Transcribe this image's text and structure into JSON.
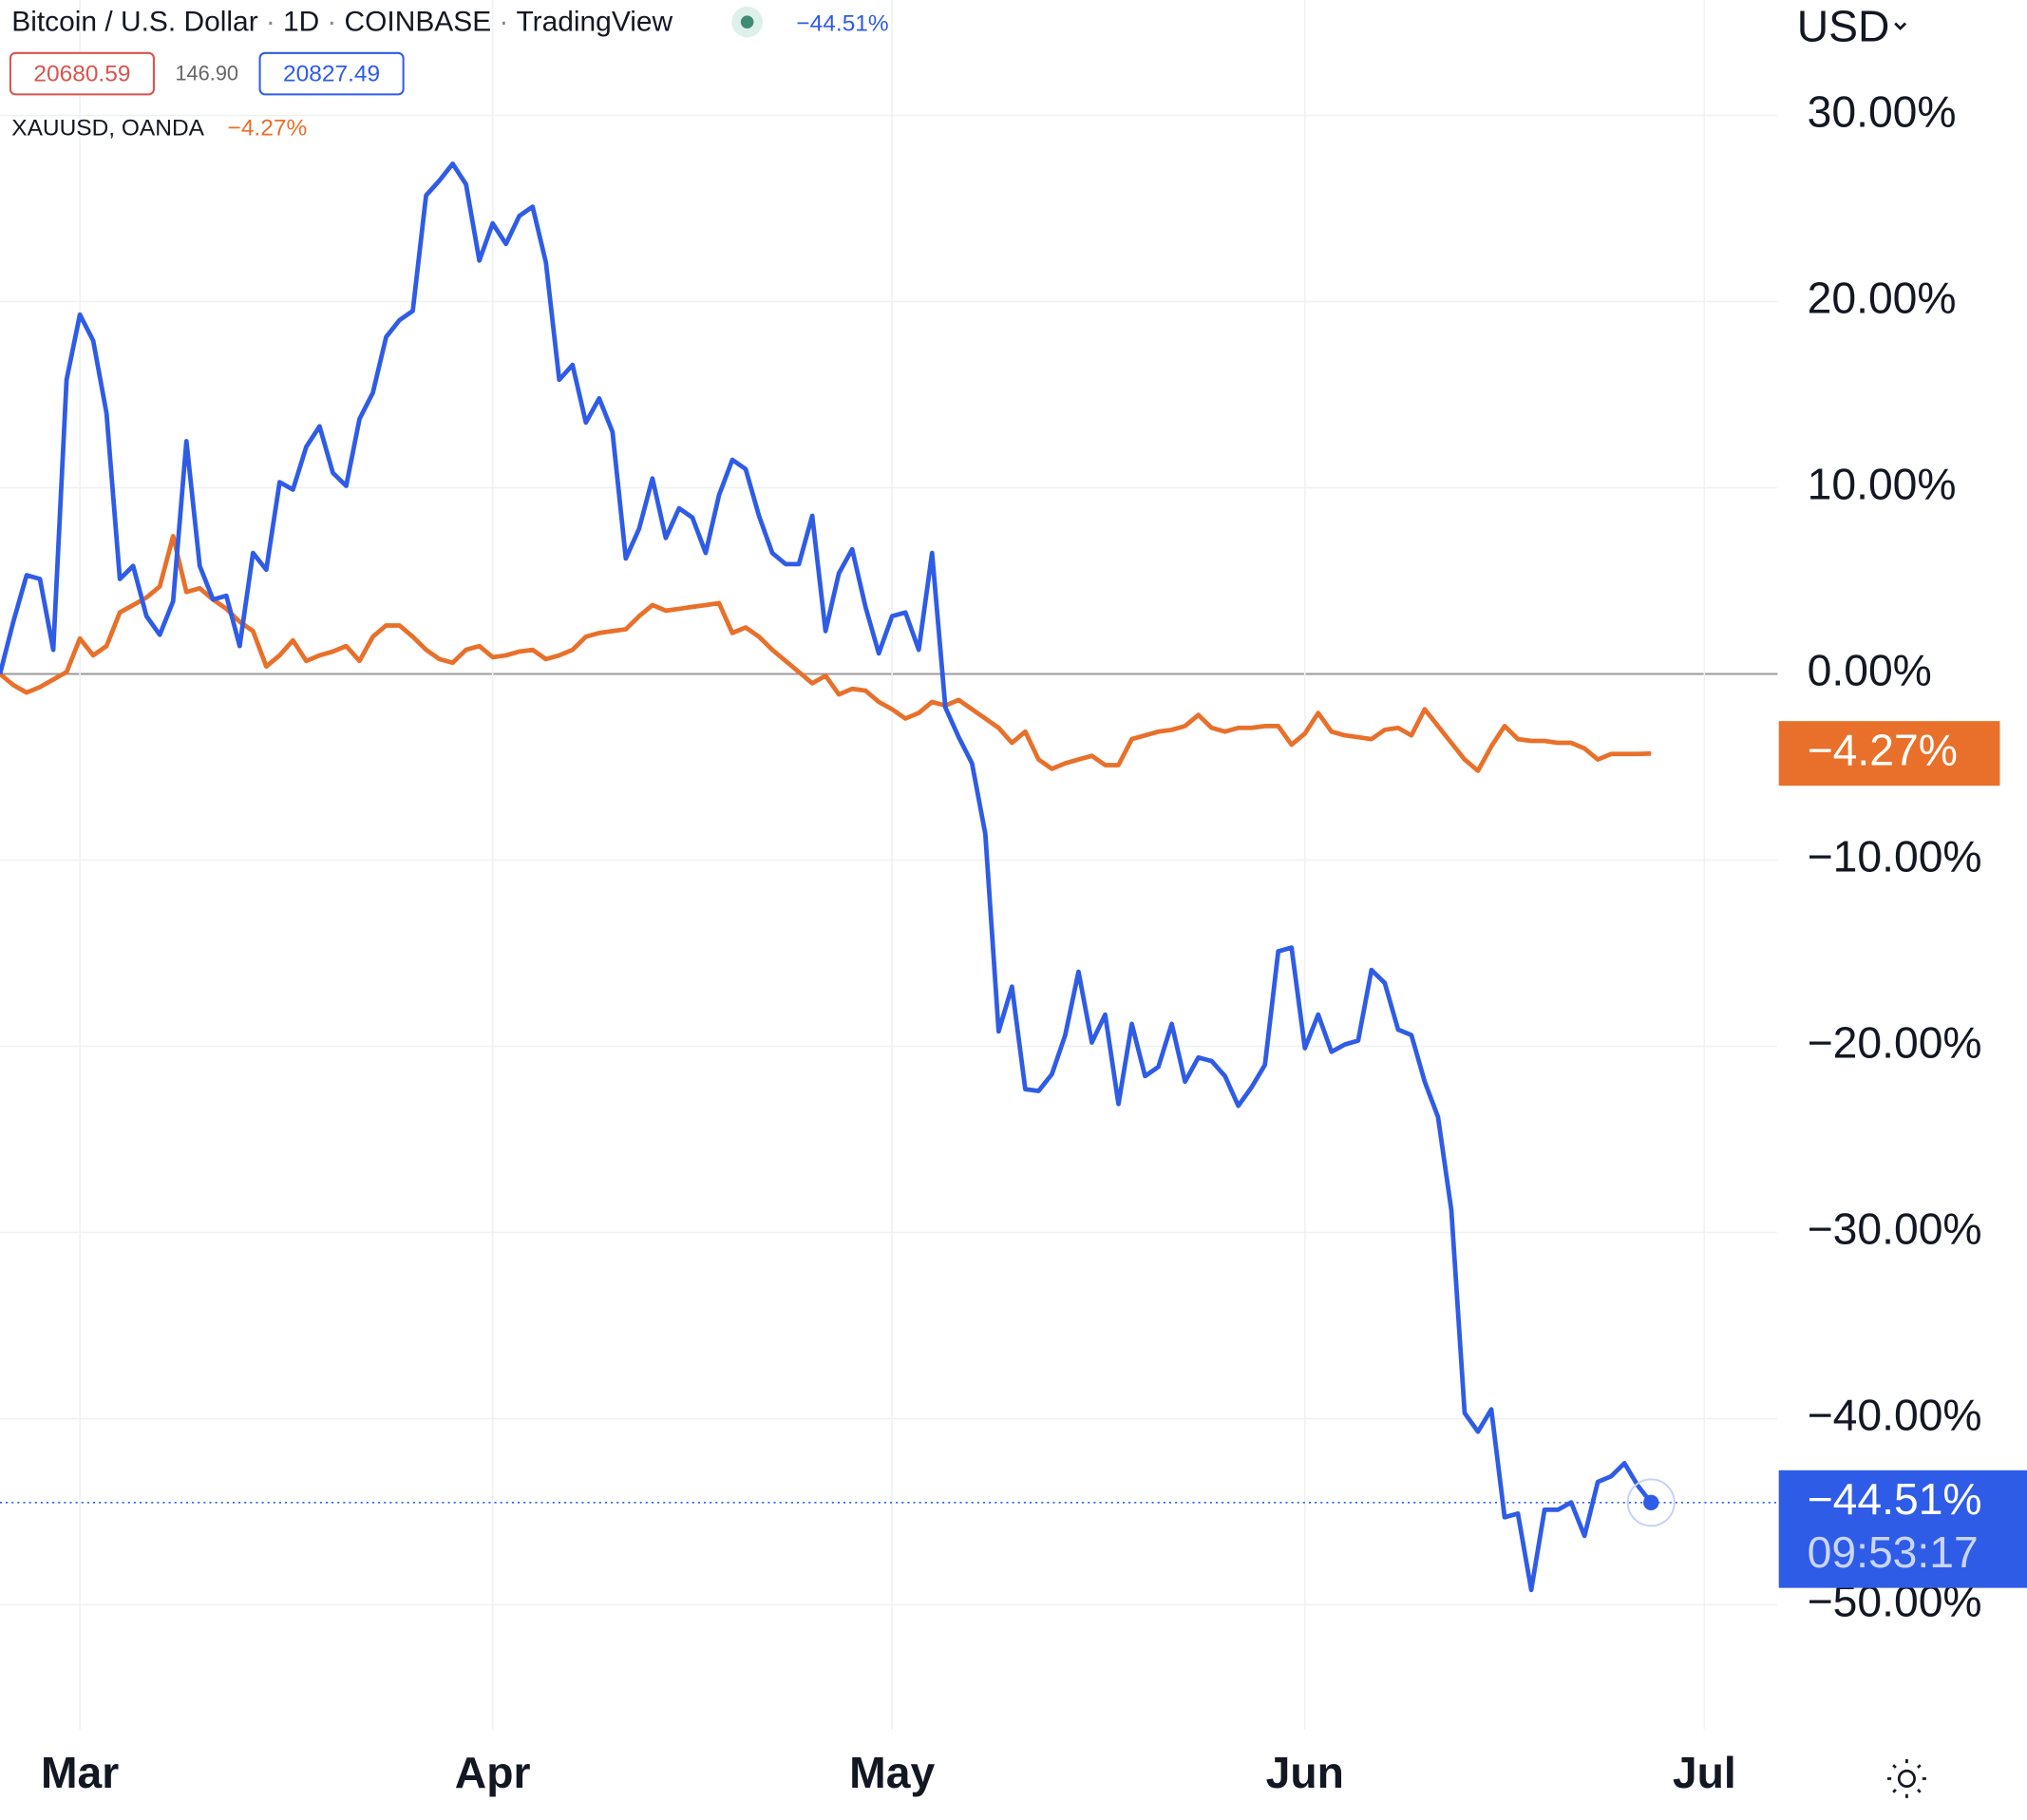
{
  "chart_data": {
    "type": "line",
    "title": "Bitcoin / U.S. Dollar",
    "interval": "1D",
    "exchange": "COINBASE",
    "source": "TradingView",
    "separator": "·",
    "quote": {
      "bid": 20680.59,
      "spread": {
        "value": 146.9,
        "label": "146.90"
      },
      "ask": 20827.49
    },
    "currency": "USD",
    "countdown": "09:53:17",
    "categories": [
      null,
      null,
      null,
      null,
      null,
      null,
      "Mar",
      null,
      null,
      null,
      null,
      null,
      null,
      null,
      null,
      null,
      null,
      null,
      null,
      null,
      null,
      null,
      null,
      null,
      null,
      null,
      null,
      null,
      null,
      null,
      null,
      null,
      null,
      null,
      null,
      null,
      null,
      "Apr",
      null,
      null,
      null,
      null,
      null,
      null,
      null,
      null,
      null,
      null,
      null,
      null,
      null,
      null,
      null,
      null,
      null,
      null,
      null,
      null,
      null,
      null,
      null,
      null,
      null,
      null,
      null,
      null,
      null,
      "May",
      null,
      null,
      null,
      null,
      null,
      null,
      null,
      null,
      null,
      null,
      null,
      null,
      null,
      null,
      null,
      null,
      null,
      null,
      null,
      null,
      null,
      null,
      null,
      null,
      null,
      null,
      null,
      null,
      null,
      null,
      "Jun",
      null,
      null,
      null,
      null,
      null,
      null,
      null,
      null,
      null,
      null,
      null,
      null,
      null,
      null,
      null,
      null,
      null,
      null,
      null,
      null,
      null,
      null,
      null,
      null,
      null,
      null,
      null,
      null,
      null,
      "Jul"
    ],
    "series": [
      {
        "name": "Bitcoin / U.S. Dollar",
        "color": "#2f5ce6",
        "last_value_label": "−44.51%",
        "values": [
          0,
          2.8,
          5.3,
          5.1,
          1.3,
          15.8,
          19.3,
          17.9,
          14.0,
          5.1,
          5.8,
          3.1,
          2.1,
          3.9,
          12.5,
          5.8,
          4.0,
          4.2,
          1.5,
          6.5,
          5.6,
          10.3,
          9.9,
          12.2,
          13.3,
          10.8,
          10.1,
          13.7,
          15.1,
          18.1,
          19.0,
          19.5,
          25.7,
          26.5,
          27.4,
          26.3,
          22.2,
          24.2,
          23.1,
          24.6,
          25.1,
          22.1,
          15.8,
          16.6,
          13.5,
          14.8,
          13.0,
          6.2,
          7.8,
          10.5,
          7.3,
          8.9,
          8.4,
          6.5,
          9.6,
          11.5,
          11.0,
          8.5,
          6.5,
          5.9,
          5.9,
          8.5,
          2.3,
          5.4,
          6.7,
          3.6,
          1.1,
          3.1,
          3.3,
          1.3,
          6.5,
          -1.8,
          -3.4,
          -4.8,
          -8.6,
          -19.2,
          -16.8,
          -22.3,
          -22.4,
          -21.5,
          -19.4,
          -16.0,
          -19.8,
          -18.3,
          -23.1,
          -18.8,
          -21.6,
          -21.1,
          -18.8,
          -21.9,
          -20.6,
          -20.8,
          -21.6,
          -23.2,
          -22.2,
          -21.0,
          -14.9,
          -14.7,
          -20.1,
          -18.3,
          -20.3,
          -19.9,
          -19.7,
          -15.9,
          -16.6,
          -19.1,
          -19.4,
          -21.9,
          -23.8,
          -28.8,
          -39.7,
          -40.7,
          -39.5,
          -45.3,
          -45.1,
          -49.2,
          -44.9,
          -44.9,
          -44.5,
          -46.3,
          -43.4,
          -43.1,
          -42.4,
          -43.6,
          -44.51,
          null,
          null,
          null,
          null
        ]
      },
      {
        "name": "XAUUSD, OANDA",
        "color": "#e8702a",
        "last_value_label": "−4.27%",
        "values": [
          0,
          -0.6,
          -1.0,
          -0.7,
          -0.3,
          0.1,
          1.9,
          1.0,
          1.5,
          3.3,
          3.7,
          4.1,
          4.7,
          7.4,
          4.4,
          4.6,
          4.0,
          3.5,
          2.8,
          2.3,
          0.4,
          1.0,
          1.8,
          0.7,
          1.0,
          1.2,
          1.5,
          0.7,
          2.0,
          2.6,
          2.6,
          2.0,
          1.3,
          0.8,
          0.6,
          1.3,
          1.5,
          0.9,
          1.0,
          1.2,
          1.3,
          0.8,
          1.0,
          1.3,
          2.0,
          2.2,
          2.3,
          2.4,
          3.1,
          3.7,
          3.4,
          3.5,
          3.6,
          3.7,
          3.8,
          2.2,
          2.5,
          2.0,
          1.3,
          0.7,
          0.1,
          -0.5,
          -0.1,
          -1.1,
          -0.8,
          -0.9,
          -1.5,
          -1.9,
          -2.4,
          -2.1,
          -1.5,
          -1.7,
          -1.4,
          -1.9,
          -2.4,
          -2.9,
          -3.7,
          -3.1,
          -4.6,
          -5.1,
          -4.8,
          -4.6,
          -4.4,
          -4.9,
          -4.9,
          -3.5,
          -3.3,
          -3.1,
          -3.0,
          -2.8,
          -2.2,
          -2.9,
          -3.1,
          -2.9,
          -2.9,
          -2.8,
          -2.8,
          -3.8,
          -3.2,
          -2.1,
          -3.1,
          -3.3,
          -3.4,
          -3.5,
          -3.0,
          -2.9,
          -3.3,
          -1.9,
          -2.8,
          -3.7,
          -4.6,
          -5.2,
          -3.9,
          -2.8,
          -3.5,
          -3.6,
          -3.6,
          -3.7,
          -3.7,
          -4.0,
          -4.6,
          -4.3,
          -4.3,
          -4.3,
          -4.27,
          null,
          null,
          null,
          null
        ]
      }
    ],
    "ylim": [
      -56.7,
      36.2
    ],
    "yticks": [
      {
        "value": 30,
        "label": "30.00%"
      },
      {
        "value": 20,
        "label": "20.00%"
      },
      {
        "value": 10,
        "label": "10.00%"
      },
      {
        "value": 0,
        "label": "0.00%"
      },
      {
        "value": -10,
        "label": "−10.00%"
      },
      {
        "value": -20,
        "label": "−20.00%"
      },
      {
        "value": -30,
        "label": "−30.00%"
      },
      {
        "value": -40,
        "label": "−40.00%"
      },
      {
        "value": -50,
        "label": "−50.00%"
      }
    ],
    "grid": true
  }
}
